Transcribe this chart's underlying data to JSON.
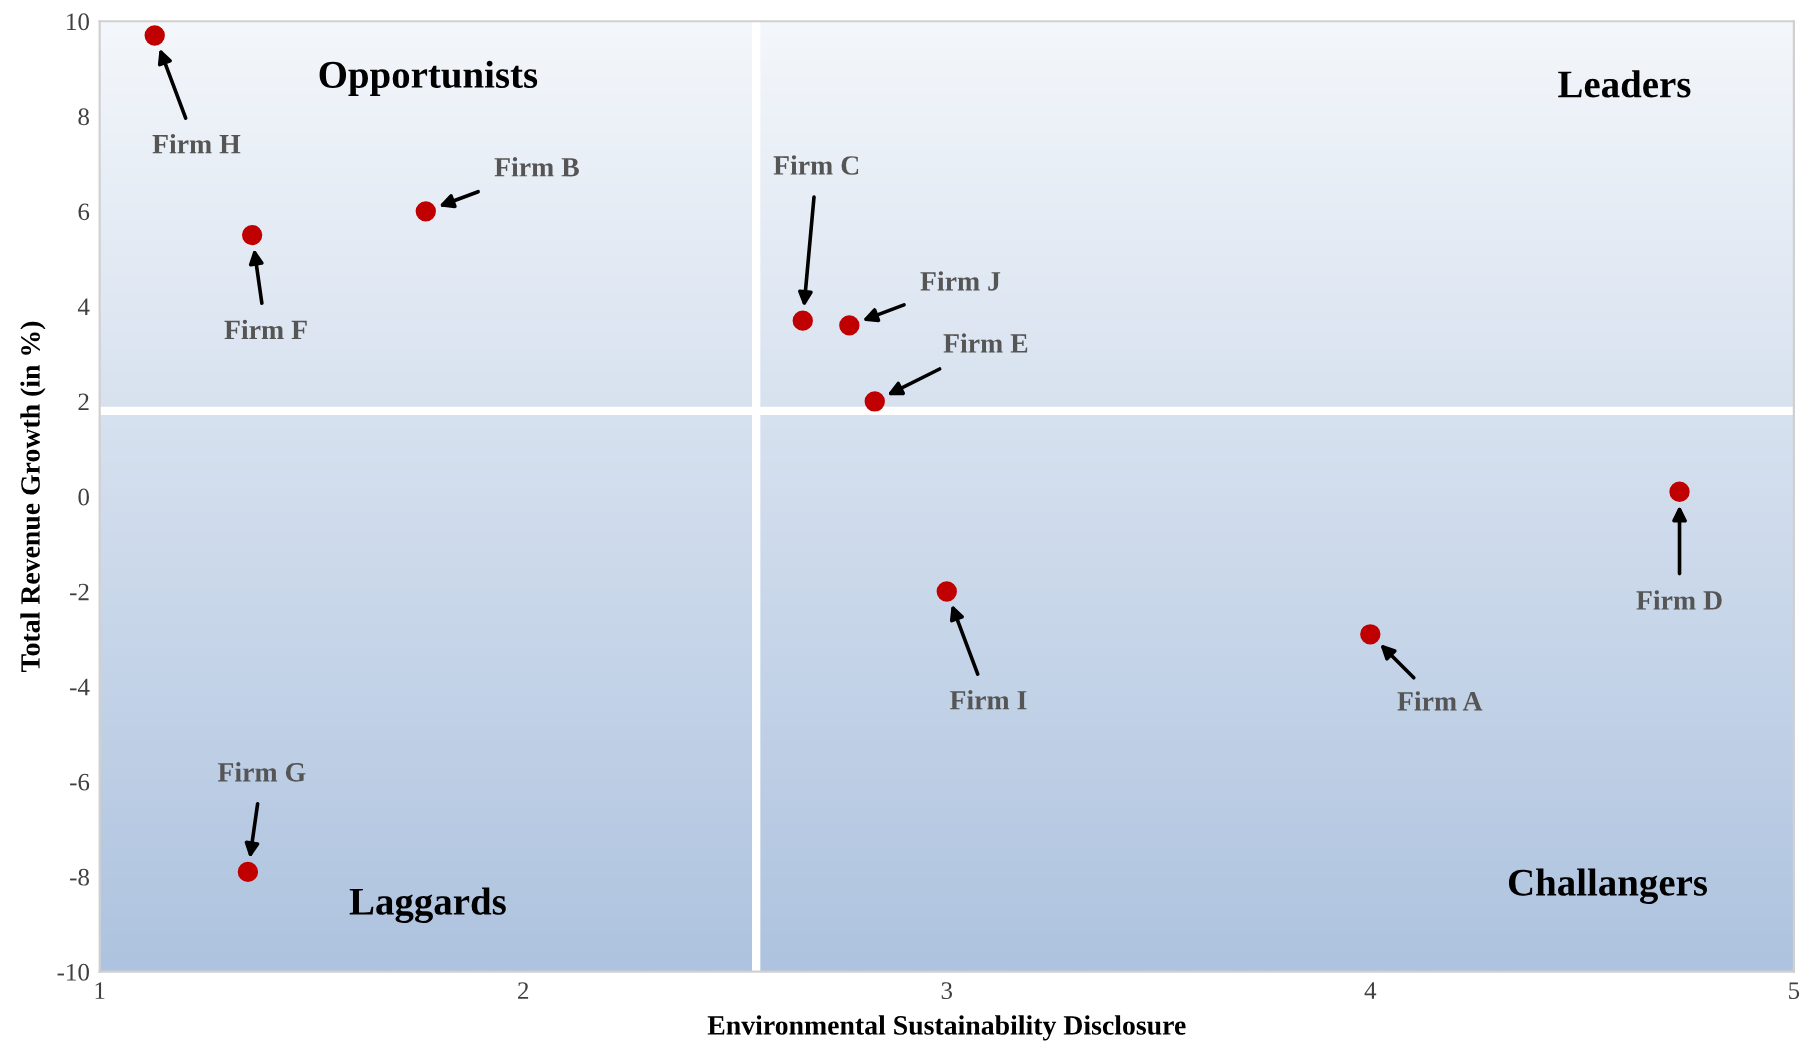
{
  "chart_data": {
    "type": "scatter",
    "xlabel": "Environmental Sustainability Disclosure",
    "ylabel": "Total Revenue Growth (in %)",
    "x": [
      4.0,
      1.77,
      2.66,
      4.73,
      2.83,
      1.36,
      1.35,
      1.13,
      3.0,
      2.77
    ],
    "series": [
      {
        "color": "#c00000",
        "values": [
          -2.9,
          6.0,
          3.7,
          0.1,
          2.0,
          5.5,
          -7.9,
          9.7,
          -2.0,
          3.6
        ]
      }
    ],
    "marker": "circle",
    "xlim": [
      1,
      5
    ],
    "ylim": [
      -10,
      10
    ],
    "xticks": [
      1,
      2,
      3,
      4,
      5
    ],
    "yticks": [
      -10,
      -8,
      -6,
      -4,
      -2,
      0,
      2,
      4,
      6,
      8,
      10
    ],
    "ref_lines": [
      {
        "axis": "x",
        "value": 2.55,
        "color": "#ffffff"
      },
      {
        "axis": "y",
        "value": 1.8,
        "color": "#ffffff"
      }
    ],
    "grid": false,
    "legend": false,
    "annotations": [
      "Opportunists",
      "Leaders",
      "Laggards",
      "Challangers",
      {
        "text": "Firm A",
        "x": 4.0,
        "y": -2.9
      },
      {
        "text": "Firm B",
        "x": 1.77,
        "y": 6.0
      },
      {
        "text": "Firm C",
        "x": 2.66,
        "y": 3.7
      },
      {
        "text": "Firm D",
        "x": 4.73,
        "y": 0.1
      },
      {
        "text": "Firm E",
        "x": 2.83,
        "y": 2.0
      },
      {
        "text": "Firm F",
        "x": 1.36,
        "y": 5.5
      },
      {
        "text": "Firm G",
        "x": 1.35,
        "y": -7.9
      },
      {
        "text": "Firm H",
        "x": 1.13,
        "y": 9.7
      },
      {
        "text": "Firm I",
        "x": 3.0,
        "y": -2.0
      },
      {
        "text": "Firm J",
        "x": 2.77,
        "y": 3.6
      }
    ]
  }
}
